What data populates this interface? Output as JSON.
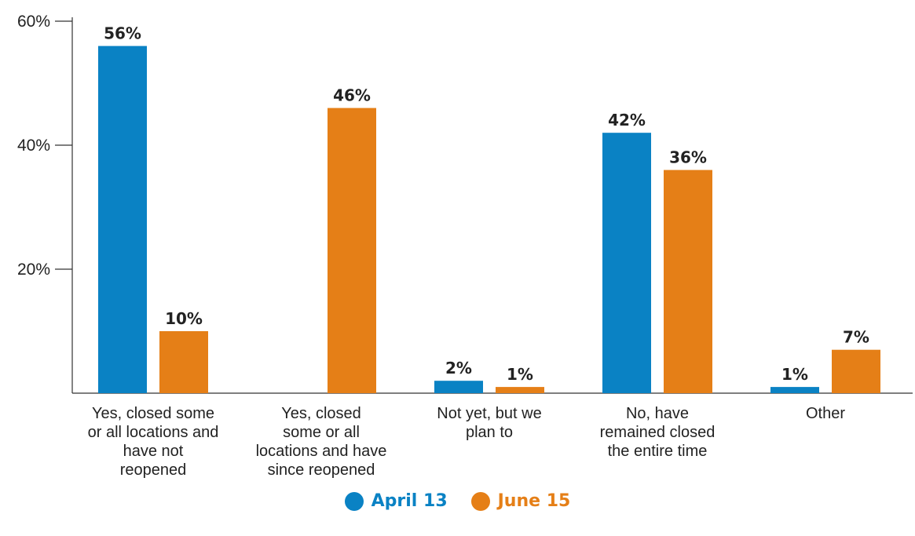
{
  "chart_data": {
    "type": "bar",
    "categories": [
      "Yes, closed some or all locations and have not reopened",
      "Yes, closed some or all locations and have since reopened",
      "Not yet, but we plan to",
      "No, have remained closed the entire time",
      "Other"
    ],
    "category_lines": [
      [
        "Yes, closed some",
        "or all locations and",
        "have not",
        "reopened"
      ],
      [
        "Yes, closed",
        "some or all",
        "locations and have",
        "since reopened"
      ],
      [
        "Not yet, but we",
        "plan to"
      ],
      [
        "No, have",
        "remained closed",
        "the entire time"
      ],
      [
        "Other"
      ]
    ],
    "series": [
      {
        "name": "April 13",
        "color": "#0a82c4",
        "values": [
          56,
          null,
          2,
          42,
          1
        ],
        "labels": [
          "56%",
          "",
          "2%",
          "42%",
          "1%"
        ]
      },
      {
        "name": "June 15",
        "color": "#e57f17",
        "values": [
          10,
          46,
          1,
          36,
          7
        ],
        "labels": [
          "10%",
          "46%",
          "1%",
          "36%",
          "7%"
        ]
      }
    ],
    "ylim": [
      0,
      60
    ],
    "yticks": [
      20,
      40,
      60
    ],
    "ytick_labels": [
      "20%",
      "40%",
      "60%"
    ],
    "grid": false,
    "legend_position": "bottom-center"
  }
}
